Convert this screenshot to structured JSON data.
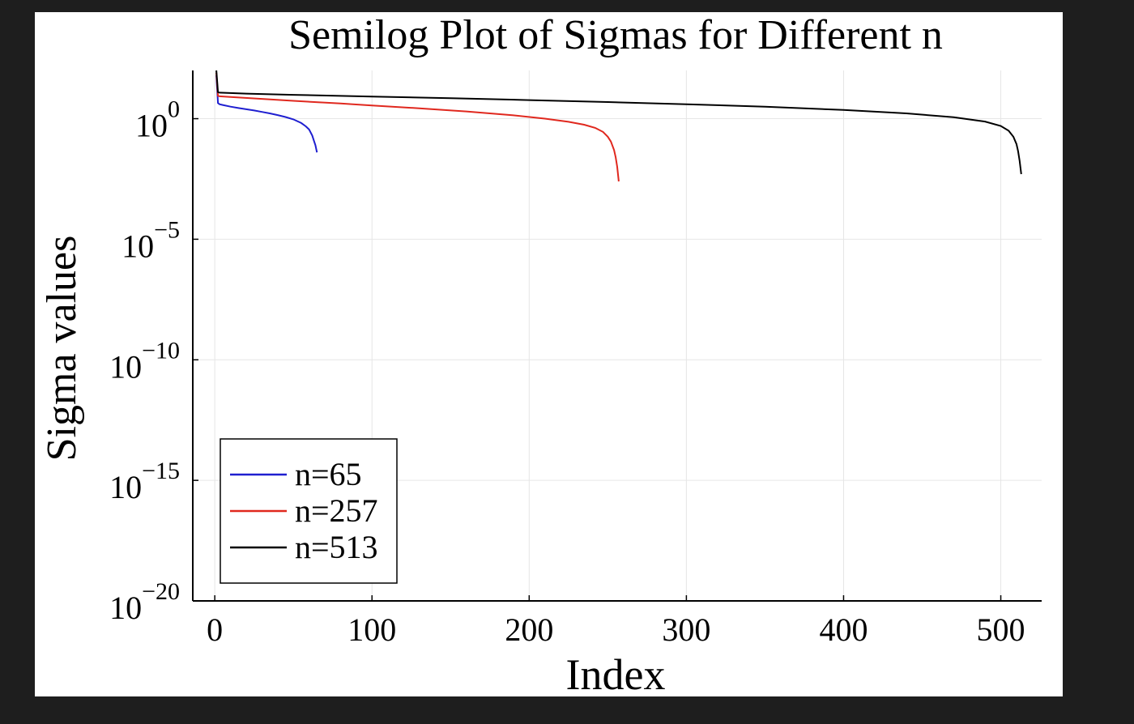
{
  "chart_data": {
    "type": "line",
    "title": "Semilog Plot of Sigmas for Different n",
    "xlabel": "Index",
    "ylabel": "Sigma values",
    "xlim": [
      -14,
      526
    ],
    "ylim_log10": [
      -20,
      2
    ],
    "yscale": "log",
    "grid": true,
    "legend_position": "bottom-left",
    "x_ticks": [
      {
        "value": 0,
        "label": "0"
      },
      {
        "value": 100,
        "label": "100"
      },
      {
        "value": 200,
        "label": "200"
      },
      {
        "value": 300,
        "label": "300"
      },
      {
        "value": 400,
        "label": "400"
      },
      {
        "value": 500,
        "label": "500"
      }
    ],
    "y_ticks": [
      {
        "exp": 0,
        "base": "10",
        "sup": "0"
      },
      {
        "exp": -5,
        "base": "10",
        "sup": "−5"
      },
      {
        "exp": -10,
        "base": "10",
        "sup": "−10"
      },
      {
        "exp": -15,
        "base": "10",
        "sup": "−15"
      },
      {
        "exp": -20,
        "base": "10",
        "sup": "−20"
      }
    ],
    "series": [
      {
        "name": "n=65",
        "color": "#1f1fd0",
        "x": [
          1,
          2,
          3,
          5,
          10,
          15,
          20,
          25,
          30,
          35,
          40,
          45,
          50,
          55,
          58,
          60,
          62,
          63,
          64,
          65
        ],
        "log10_y": [
          1.8,
          0.65,
          0.6,
          0.57,
          0.5,
          0.44,
          0.39,
          0.34,
          0.28,
          0.22,
          0.15,
          0.07,
          -0.03,
          -0.18,
          -0.32,
          -0.45,
          -0.7,
          -0.9,
          -1.1,
          -1.4
        ]
      },
      {
        "name": "n=257",
        "color": "#e0281e",
        "x": [
          1,
          2,
          3,
          10,
          30,
          50,
          80,
          100,
          130,
          160,
          190,
          210,
          225,
          235,
          242,
          247,
          250,
          252,
          254,
          255,
          256,
          257
        ],
        "log10_y": [
          1.9,
          0.95,
          0.93,
          0.9,
          0.82,
          0.74,
          0.63,
          0.55,
          0.43,
          0.3,
          0.14,
          0.0,
          -0.13,
          -0.25,
          -0.38,
          -0.55,
          -0.75,
          -0.95,
          -1.3,
          -1.6,
          -2.0,
          -2.6
        ]
      },
      {
        "name": "n=513",
        "color": "#000000",
        "x": [
          1,
          2,
          3,
          20,
          50,
          100,
          150,
          200,
          250,
          300,
          350,
          400,
          440,
          470,
          490,
          500,
          505,
          508,
          510,
          511,
          512,
          513
        ],
        "log10_y": [
          2.0,
          1.1,
          1.08,
          1.04,
          0.99,
          0.92,
          0.85,
          0.77,
          0.69,
          0.6,
          0.5,
          0.36,
          0.22,
          0.06,
          -0.12,
          -0.3,
          -0.5,
          -0.75,
          -1.05,
          -1.35,
          -1.75,
          -2.3
        ]
      }
    ]
  }
}
